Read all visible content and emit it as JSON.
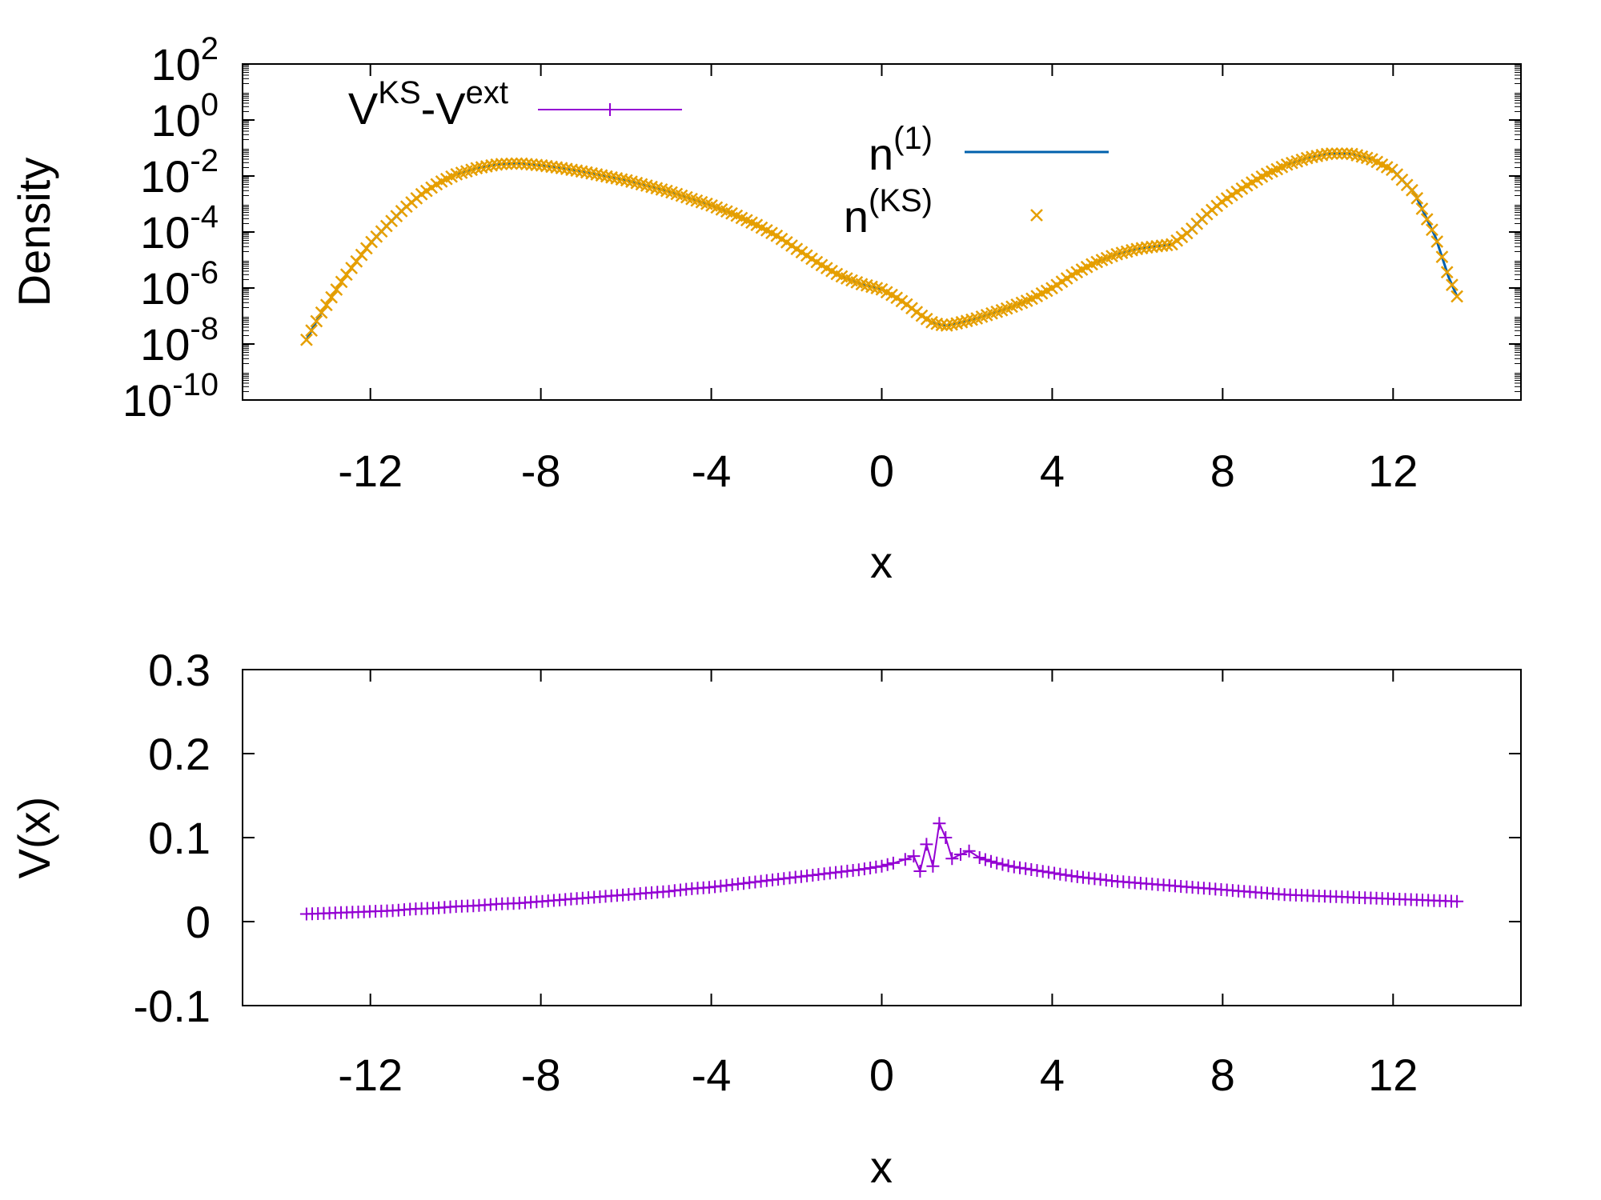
{
  "chart_data": [
    {
      "type": "line",
      "panel": "top",
      "ylabel": "Density",
      "xlabel": "x",
      "yscale": "log",
      "xlim": [
        -15,
        15
      ],
      "ylim_exponent": [
        -10,
        2
      ],
      "xticks": [
        -12,
        -8,
        -4,
        0,
        4,
        8,
        12
      ],
      "xtick_labels": [
        "-12",
        "-8",
        "-4",
        "0",
        "4",
        "8",
        "12"
      ],
      "ytick_exponents": [
        2,
        0,
        -2,
        -4,
        -6,
        -8,
        -10
      ],
      "ytick_base": "10",
      "ytick_powers": [
        "2",
        "0",
        "-2",
        "-4",
        "-6",
        "-8",
        "-10"
      ],
      "legend": [
        {
          "base": "V",
          "sup": "KS",
          "mid": "-V",
          "sup2": "ext",
          "color": "#9400d3",
          "marker": "plus"
        },
        {
          "base": "n",
          "sup": "(1)",
          "color": "#0060ad",
          "marker": "none"
        },
        {
          "base": "n",
          "sup": "(KS)",
          "color": "#e69f00",
          "marker": "cross"
        }
      ],
      "series": [
        {
          "name": "n(1)",
          "color": "#0060ad",
          "x": [
            -13.5,
            -13.2,
            -12.9,
            -12.6,
            -12.3,
            -12.0,
            -11.6,
            -11.2,
            -10.8,
            -10.4,
            -10.0,
            -9.5,
            -9.0,
            -8.5,
            -8.0,
            -7.5,
            -7.0,
            -6.5,
            -6.0,
            -5.5,
            -5.0,
            -4.5,
            -4.0,
            -3.5,
            -3.0,
            -2.5,
            -2.0,
            -1.5,
            -1.0,
            -0.5,
            0.0,
            0.3,
            0.6,
            0.9,
            1.2,
            1.5,
            1.8,
            2.2,
            2.6,
            3.0,
            3.5,
            4.0,
            4.5,
            5.0,
            5.5,
            6.0,
            6.5,
            6.8,
            7.2,
            7.6,
            8.0,
            8.5,
            9.0,
            9.5,
            10.0,
            10.5,
            11.0,
            11.5,
            12.0,
            12.5,
            13.0,
            13.3,
            13.5
          ],
          "log10_y": [
            -7.85,
            -7.0,
            -6.3,
            -5.6,
            -5.0,
            -4.4,
            -3.75,
            -3.15,
            -2.65,
            -2.25,
            -1.95,
            -1.72,
            -1.58,
            -1.55,
            -1.62,
            -1.72,
            -1.85,
            -2.0,
            -2.15,
            -2.35,
            -2.55,
            -2.8,
            -3.05,
            -3.35,
            -3.7,
            -4.1,
            -4.6,
            -5.1,
            -5.55,
            -5.85,
            -6.05,
            -6.3,
            -6.6,
            -6.95,
            -7.25,
            -7.35,
            -7.25,
            -7.1,
            -6.9,
            -6.7,
            -6.4,
            -6.0,
            -5.5,
            -5.1,
            -4.8,
            -4.6,
            -4.5,
            -4.45,
            -4.0,
            -3.4,
            -2.9,
            -2.4,
            -1.95,
            -1.6,
            -1.35,
            -1.2,
            -1.2,
            -1.4,
            -1.8,
            -2.6,
            -4.2,
            -5.6,
            -6.3
          ]
        },
        {
          "name": "n(KS)",
          "color": "#e69f00",
          "x": [
            -13.5,
            -13.2,
            -12.9,
            -12.6,
            -12.3,
            -12.0,
            -11.6,
            -11.2,
            -10.8,
            -10.4,
            -10.0,
            -9.5,
            -9.0,
            -8.5,
            -8.0,
            -7.5,
            -7.0,
            -6.5,
            -6.0,
            -5.5,
            -5.0,
            -4.5,
            -4.0,
            -3.5,
            -3.0,
            -2.5,
            -2.0,
            -1.5,
            -1.0,
            -0.5,
            0.0,
            0.3,
            0.6,
            0.9,
            1.2,
            1.5,
            1.8,
            2.2,
            2.6,
            3.0,
            3.5,
            4.0,
            4.5,
            5.0,
            5.5,
            6.0,
            6.5,
            6.8,
            7.2,
            7.6,
            8.0,
            8.5,
            9.0,
            9.5,
            10.0,
            10.5,
            11.0,
            11.5,
            12.0,
            12.5,
            13.0,
            13.3,
            13.5
          ],
          "log10_y": [
            -7.85,
            -7.0,
            -6.3,
            -5.6,
            -5.0,
            -4.4,
            -3.75,
            -3.15,
            -2.65,
            -2.25,
            -1.95,
            -1.72,
            -1.58,
            -1.55,
            -1.62,
            -1.72,
            -1.85,
            -2.0,
            -2.15,
            -2.35,
            -2.55,
            -2.8,
            -3.05,
            -3.35,
            -3.7,
            -4.1,
            -4.6,
            -5.1,
            -5.55,
            -5.85,
            -6.05,
            -6.3,
            -6.6,
            -6.95,
            -7.25,
            -7.35,
            -7.25,
            -7.1,
            -6.9,
            -6.7,
            -6.4,
            -6.0,
            -5.5,
            -5.1,
            -4.8,
            -4.6,
            -4.5,
            -4.45,
            -4.0,
            -3.4,
            -2.9,
            -2.4,
            -1.95,
            -1.6,
            -1.35,
            -1.2,
            -1.2,
            -1.4,
            -1.8,
            -2.6,
            -4.2,
            -5.6,
            -6.3
          ]
        }
      ]
    },
    {
      "type": "line",
      "panel": "bottom",
      "ylabel": "V(x)",
      "xlabel": "x",
      "xlim": [
        -15,
        15
      ],
      "ylim": [
        -0.1,
        0.3
      ],
      "xticks": [
        -12,
        -8,
        -4,
        0,
        4,
        8,
        12
      ],
      "xtick_labels": [
        "-12",
        "-8",
        "-4",
        "0",
        "4",
        "8",
        "12"
      ],
      "yticks": [
        0.3,
        0.2,
        0.1,
        0,
        -0.1
      ],
      "ytick_labels": [
        "0.3",
        "0.2",
        "0.1",
        "0",
        "-0.1"
      ],
      "series": [
        {
          "name": "VKS-Vext",
          "color": "#9400d3",
          "x": [
            -13.5,
            -13.0,
            -12.5,
            -12.0,
            -11.5,
            -11.0,
            -10.5,
            -10.0,
            -9.5,
            -9.0,
            -8.5,
            -8.0,
            -7.5,
            -7.0,
            -6.5,
            -6.0,
            -5.5,
            -5.0,
            -4.5,
            -4.0,
            -3.5,
            -3.0,
            -2.5,
            -2.0,
            -1.5,
            -1.0,
            -0.5,
            0.0,
            0.3,
            0.55,
            0.75,
            0.9,
            1.05,
            1.2,
            1.35,
            1.5,
            1.65,
            1.85,
            2.05,
            2.3,
            2.6,
            3.0,
            3.5,
            4.0,
            4.5,
            5.0,
            5.5,
            6.0,
            6.5,
            7.0,
            7.5,
            8.0,
            8.5,
            9.0,
            9.5,
            10.0,
            10.5,
            11.0,
            11.5,
            12.0,
            12.5,
            13.0,
            13.5
          ],
          "y": [
            0.009,
            0.01,
            0.011,
            0.012,
            0.013,
            0.015,
            0.016,
            0.018,
            0.019,
            0.021,
            0.022,
            0.024,
            0.026,
            0.028,
            0.03,
            0.032,
            0.034,
            0.036,
            0.039,
            0.041,
            0.044,
            0.047,
            0.05,
            0.053,
            0.056,
            0.059,
            0.062,
            0.066,
            0.07,
            0.074,
            0.078,
            0.06,
            0.092,
            0.066,
            0.117,
            0.1,
            0.075,
            0.08,
            0.084,
            0.076,
            0.071,
            0.066,
            0.062,
            0.058,
            0.054,
            0.051,
            0.048,
            0.046,
            0.044,
            0.042,
            0.04,
            0.038,
            0.036,
            0.034,
            0.032,
            0.031,
            0.03,
            0.029,
            0.028,
            0.027,
            0.026,
            0.025,
            0.024
          ]
        }
      ]
    }
  ]
}
